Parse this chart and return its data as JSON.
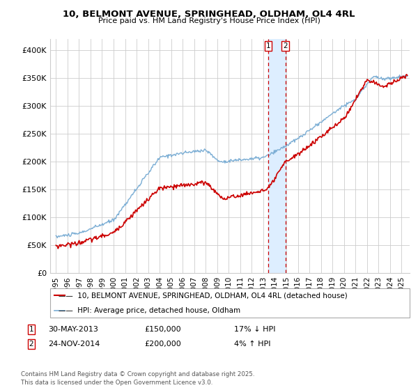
{
  "title1": "10, BELMONT AVENUE, SPRINGHEAD, OLDHAM, OL4 4RL",
  "title2": "Price paid vs. HM Land Registry's House Price Index (HPI)",
  "ylabel_ticks": [
    "£0",
    "£50K",
    "£100K",
    "£150K",
    "£200K",
    "£250K",
    "£300K",
    "£350K",
    "£400K"
  ],
  "ytick_vals": [
    0,
    50000,
    100000,
    150000,
    200000,
    250000,
    300000,
    350000,
    400000
  ],
  "ylim": [
    0,
    420000
  ],
  "xlim_start": 1994.5,
  "xlim_end": 2025.7,
  "legend1": "10, BELMONT AVENUE, SPRINGHEAD, OLDHAM, OL4 4RL (detached house)",
  "legend2": "HPI: Average price, detached house, Oldham",
  "sale1_date": "30-MAY-2013",
  "sale1_price": "£150,000",
  "sale1_pct": "17% ↓ HPI",
  "sale2_date": "24-NOV-2014",
  "sale2_price": "£200,000",
  "sale2_pct": "4% ↑ HPI",
  "footnote1": "Contains HM Land Registry data © Crown copyright and database right 2025.",
  "footnote2": "This data is licensed under the Open Government Licence v3.0.",
  "red_color": "#cc0000",
  "blue_color": "#7aadd4",
  "vline_color": "#cc0000",
  "shade_color": "#ddeeff",
  "marker1_x": 2013.42,
  "marker2_x": 2014.92,
  "background_color": "#ffffff",
  "grid_color": "#cccccc"
}
